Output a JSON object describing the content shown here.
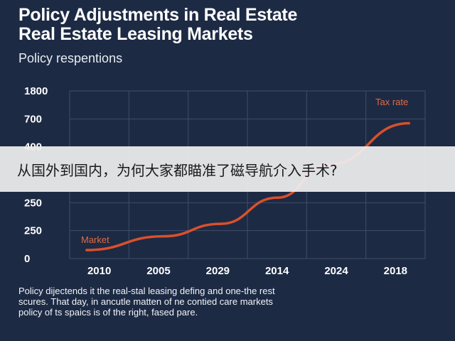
{
  "header": {
    "title_line1": "Policy Adjustments in Real Estate",
    "title_line2": "Real Estate Leasing Markets",
    "subtitle": "Policy respentions"
  },
  "caption": {
    "line1": "Policy dijectends it the real-stal leasing defing and one-the rest",
    "line2": "scures. That day, in ancutle matten of ne contied care markets",
    "line3": "policy of ts spaics is of the right, fased pare."
  },
  "overlay": {
    "text": "从国外到国内，为何大家都瞄准了磁导航介入手术?"
  },
  "colors": {
    "background": "#1d2a44",
    "line": "#d9502c",
    "grid": "#3f4d68"
  },
  "chart_data": {
    "type": "line",
    "categories": [
      "2010",
      "2005",
      "2029",
      "2014",
      "2024",
      "2018"
    ],
    "y_tick_labels": [
      "1800",
      "700",
      "400",
      "",
      "250",
      "250",
      "0"
    ],
    "series": [
      {
        "values": [
          0,
          0.1,
          0.19,
          0.38,
          0.62,
          0.92
        ]
      }
    ],
    "annotations": {
      "start_label": "Market",
      "end_label": "Tax rate"
    },
    "ylim": [
      0,
      1
    ],
    "grid": true,
    "title": "Policy Adjustments in Real Estate Real Estate Leasing Markets",
    "xlabel": "",
    "ylabel": ""
  }
}
